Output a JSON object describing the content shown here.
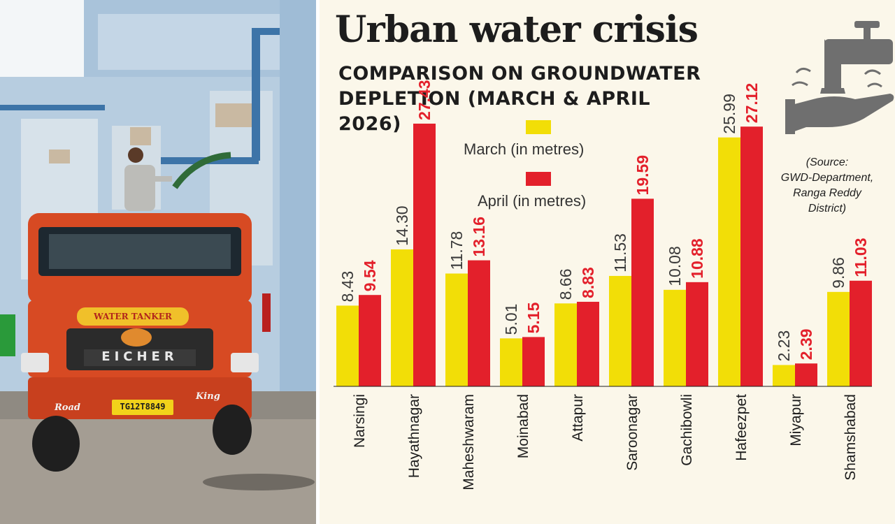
{
  "header": {
    "title": "Urban water crisis",
    "subtitle_line1": "COMPARISON ON GROUNDWATER",
    "subtitle_line2": "DEPLETION (MARCH & APRIL 2026)"
  },
  "legend": {
    "march_label": "March (in metres)",
    "april_label": "April (in metres)"
  },
  "source": {
    "line1": "(Source:",
    "line2": "GWD-Department,",
    "line3": "Ranga Reddy",
    "line4": "District)"
  },
  "photo": {
    "tanker_header": "WATER TANKER",
    "tanker_brand": "EICHER",
    "plate": "TG12T8849",
    "bumper_left": "Road",
    "bumper_right": "King"
  },
  "colors": {
    "march": "#f2de07",
    "april": "#e3202b",
    "background": "#fbf7ea",
    "text": "#1d1d1d",
    "icon": "#6f6f6f"
  },
  "icons": [
    "water-tap-icon",
    "hand-icon"
  ],
  "chart_data": {
    "type": "bar",
    "title": "Urban water crisis",
    "subtitle": "COMPARISON ON GROUNDWATER DEPLETION (MARCH & APRIL 2026)",
    "categories": [
      "Narsingi",
      "Hayathnagar",
      "Maheshwaram",
      "Moinabad",
      "Attapur",
      "Saroonagar",
      "Gachibowli",
      "Hafeezpet",
      "Miyapur",
      "Shamshabad"
    ],
    "series": [
      {
        "name": "March (in metres)",
        "values": [
          8.43,
          14.3,
          11.78,
          5.01,
          8.66,
          11.53,
          10.08,
          25.99,
          2.23,
          9.86
        ],
        "labels": [
          "8.43",
          "14.30",
          "11.78",
          "5.01",
          "8.66",
          "11.53",
          "10.08",
          "25.99",
          "2.23",
          "9.86"
        ]
      },
      {
        "name": "April (in metres)",
        "values": [
          9.54,
          27.43,
          13.16,
          5.15,
          8.83,
          19.59,
          10.88,
          27.12,
          2.39,
          11.03
        ],
        "labels": [
          "9.54",
          "27.43",
          "13.16",
          "5.15",
          "8.83",
          "19.59",
          "10.88",
          "27.12",
          "2.39",
          "11.03"
        ]
      }
    ],
    "ylim": [
      0,
      27.5
    ],
    "grid": false,
    "legend_position": "top-center",
    "data_labels": "vertical above bars"
  }
}
